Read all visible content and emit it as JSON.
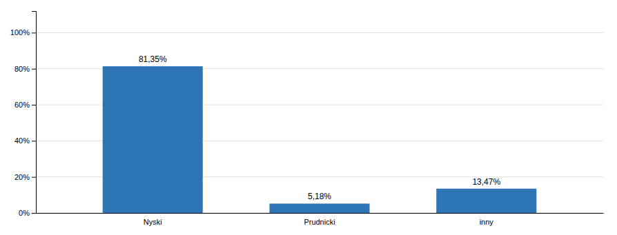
{
  "chart_data": {
    "type": "bar",
    "categories": [
      "Nyski",
      "Prudnicki",
      "inny"
    ],
    "values": [
      81.35,
      5.18,
      13.47
    ],
    "value_labels": [
      "81,35%",
      "5,18%",
      "13,47%"
    ],
    "data_labels": true,
    "color": "#2E75B6",
    "ylim": [
      0,
      112
    ],
    "yticks": [
      {
        "value": 0,
        "label": "0%"
      },
      {
        "value": 20,
        "label": "20%"
      },
      {
        "value": 40,
        "label": "40%"
      },
      {
        "value": 60,
        "label": "60%"
      },
      {
        "value": 80,
        "label": "80%"
      },
      {
        "value": 100,
        "label": "100%"
      }
    ],
    "grid": true
  }
}
